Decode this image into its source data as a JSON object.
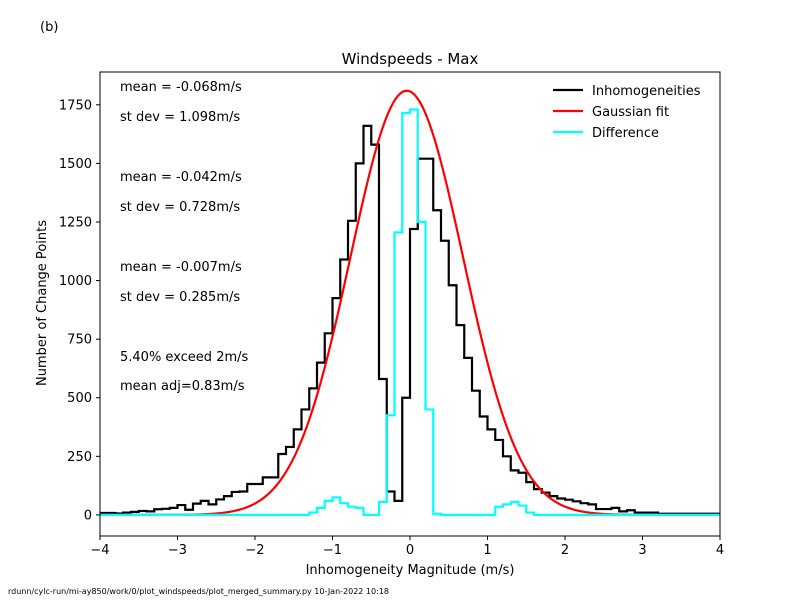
{
  "panel_label": "(b)",
  "footer": "rdunn/cylc-run/mi-ay850/work/0/plot_windspeeds/plot_merged_summary.py   10-Jan-2022 10:18",
  "chart_data": {
    "type": "line",
    "title": "Windspeeds - Max",
    "xlabel": "Inhomogeneity Magnitude (m/s)",
    "ylabel": "Number of Change Points",
    "xlim": [
      -4,
      4
    ],
    "ylim": [
      -90,
      1890
    ],
    "xticks": [
      -4,
      -3,
      -2,
      -1,
      0,
      1,
      2,
      3,
      4
    ],
    "yticks": [
      0,
      250,
      500,
      750,
      1000,
      1250,
      1500,
      1750
    ],
    "grid": false,
    "legend_position": "top-right",
    "bin_width": 0.1,
    "bin_start": -4.0,
    "series": [
      {
        "name": "Inhomogeneities",
        "color": "#000000",
        "kind": "step-histogram",
        "values": [
          8,
          8,
          6,
          10,
          13,
          17,
          15,
          24,
          26,
          30,
          42,
          22,
          48,
          60,
          45,
          66,
          80,
          98,
          100,
          132,
          132,
          160,
          160,
          260,
          290,
          365,
          450,
          540,
          650,
          775,
          925,
          1090,
          1255,
          1500,
          1660,
          1580,
          580,
          100,
          60,
          500,
          1220,
          1520,
          1520,
          1300,
          1170,
          980,
          810,
          670,
          530,
          420,
          365,
          320,
          250,
          190,
          180,
          140,
          110,
          95,
          80,
          70,
          65,
          58,
          50,
          45,
          25,
          25,
          30,
          15,
          20,
          10,
          10,
          10,
          5,
          5,
          5,
          5,
          5,
          5,
          5,
          5
        ]
      },
      {
        "name": "Gaussian fit",
        "color": "#ff0000",
        "kind": "gaussian",
        "mean": -0.042,
        "std": 0.728,
        "amplitude": 1810
      },
      {
        "name": "Difference",
        "color": "#00ffff",
        "kind": "step-histogram",
        "values": [
          0,
          0,
          0,
          0,
          0,
          0,
          0,
          0,
          0,
          0,
          0,
          0,
          0,
          0,
          0,
          0,
          0,
          0,
          0,
          0,
          0,
          0,
          0,
          0,
          0,
          0,
          0,
          10,
          30,
          60,
          75,
          50,
          35,
          30,
          0,
          0,
          55,
          425,
          1205,
          1715,
          1730,
          1250,
          450,
          5,
          0,
          0,
          0,
          0,
          0,
          0,
          0,
          35,
          45,
          55,
          40,
          10,
          0,
          0,
          0,
          0,
          0,
          0,
          0,
          0,
          0,
          0,
          0,
          0,
          0,
          0,
          0,
          0,
          0,
          0,
          0,
          0,
          0,
          0,
          0,
          0
        ]
      }
    ],
    "annotations": [
      {
        "text": "mean = -0.068m/s",
        "color": "#000000"
      },
      {
        "text": "st dev =  1.098m/s",
        "color": "#000000"
      },
      {
        "text": "mean = -0.042m/s",
        "color": "#ff0000"
      },
      {
        "text": "st dev =  0.728m/s",
        "color": "#ff0000"
      },
      {
        "text": "mean = -0.007m/s",
        "color": "#00ffff"
      },
      {
        "text": "st dev =  0.285m/s",
        "color": "#00ffff"
      },
      {
        "text": "5.40% exceed 2m/s",
        "color": "#000000"
      },
      {
        "text": "mean adj=0.83m/s",
        "color": "#000000"
      }
    ]
  }
}
